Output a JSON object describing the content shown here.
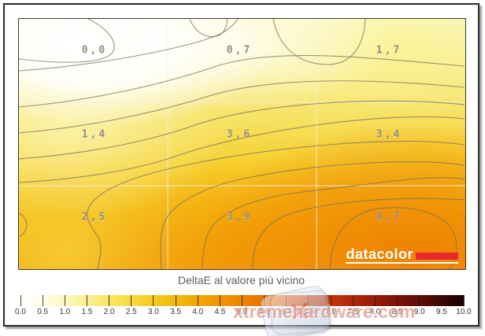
{
  "title": "DeltaE al valore più vicino",
  "plot": {
    "cell_labels": [
      "0,0",
      "0,7",
      "1,7",
      "1,4",
      "3,6",
      "3,4",
      "2,5",
      "3,9",
      "4,7"
    ],
    "contour_line_color": "#7a7258",
    "grid_line_color": "#ffffff"
  },
  "colorbar": {
    "tick_labels": [
      "0.0",
      "0.5",
      "1.0",
      "1.5",
      "2.0",
      "2.5",
      "3.0",
      "3.5",
      "4.0",
      "4.5",
      "5.0",
      "5.5",
      "6.0",
      "6.5",
      "7.0",
      "7.5",
      "8.0",
      "8.5",
      "9.0",
      "9.5",
      "10.0"
    ],
    "stop_colors": [
      "#ffffff",
      "#fffcea",
      "#fdf7c0",
      "#fbf096",
      "#f8e668",
      "#f6da3c",
      "#f5ca20",
      "#f4b90f",
      "#f2a707",
      "#f09503",
      "#ee8502",
      "#e97002",
      "#e05a04",
      "#d44708",
      "#c3350a",
      "#ae270b",
      "#961c0b",
      "#7c1309",
      "#5e0c07",
      "#3d0604",
      "#120101"
    ]
  },
  "brand": {
    "name": "datacolor",
    "bar_color": "#e8282c"
  },
  "watermark": {
    "text": "xtremehardware.com",
    "x_glyph": "✕"
  },
  "chart_data": {
    "type": "heatmap",
    "subtype": "contour-map",
    "title": "DeltaE al valore più vicino",
    "rows": 3,
    "cols": 3,
    "values": [
      [
        0.0,
        0.7,
        1.7
      ],
      [
        1.4,
        3.6,
        3.4
      ],
      [
        2.5,
        3.9,
        4.7
      ]
    ],
    "value_labels": [
      [
        "0,0",
        "0,7",
        "1,7"
      ],
      [
        "1,4",
        "3,6",
        "3,4"
      ],
      [
        "2,5",
        "3,9",
        "4,7"
      ]
    ],
    "grid": true,
    "colorbar": {
      "min": 0.0,
      "max": 10.0,
      "step": 0.5,
      "orientation": "horizontal",
      "position": "bottom",
      "tick_labels": [
        "0.0",
        "0.5",
        "1.0",
        "1.5",
        "2.0",
        "2.5",
        "3.0",
        "3.5",
        "4.0",
        "4.5",
        "5.0",
        "5.5",
        "6.0",
        "6.5",
        "7.0",
        "7.5",
        "8.0",
        "8.5",
        "9.0",
        "9.5",
        "10.0"
      ]
    },
    "colormap_description": "white at 0.0 through yellow and orange to red and black at 10.0"
  }
}
